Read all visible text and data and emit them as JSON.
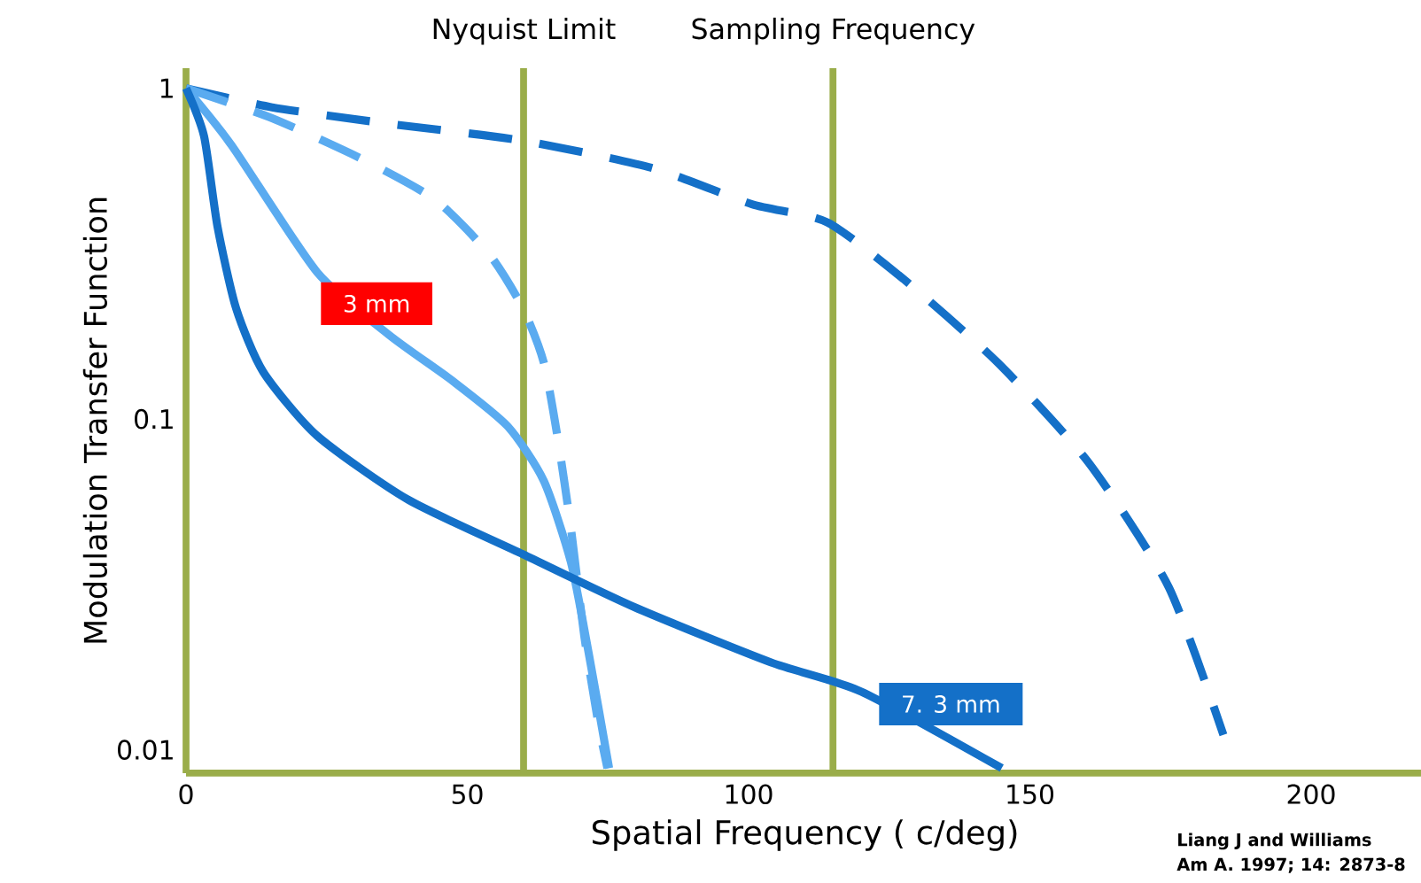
{
  "chart_data": {
    "type": "line",
    "xlabel": "Spatial Frequency ( c/deg)",
    "ylabel": "Modulation Transfer Function",
    "log": "y",
    "xlim": [
      0,
      220
    ],
    "ylim": [
      0.0085,
      1.15
    ],
    "xticks": [
      0,
      50,
      100,
      150,
      200
    ],
    "yticks": [
      0.01,
      0.1,
      1
    ],
    "series": [
      {
        "color": "#1470c8",
        "line_style": "dashed",
        "x": [
          0,
          15.3,
          34.6,
          59.9,
          82.9,
          100.6,
          114,
          128,
          144.3,
          160.4,
          174.7,
          184.4
        ],
        "values": [
          1,
          0.876,
          0.787,
          0.694,
          0.574,
          0.446,
          0.393,
          0.261,
          0.148,
          0.074,
          0.031,
          0.0111
        ]
      },
      {
        "color": "#5aabf0",
        "line_style": "dashed",
        "x": [
          0,
          15.3,
          31.3,
          44.3,
          53.9,
          59.9,
          63.6,
          66,
          68.4,
          70.8,
          73.3,
          74.9
        ],
        "values": [
          1,
          0.812,
          0.611,
          0.46,
          0.315,
          0.216,
          0.148,
          0.089,
          0.047,
          0.022,
          0.012,
          0.0088
        ]
      },
      {
        "color": "#5aabf0",
        "line_style": "solid",
        "x": [
          0,
          8.1,
          23.3,
          36.2,
          47.5,
          57.2,
          63.6,
          68.4,
          71.6,
          75.2
        ],
        "values": [
          1,
          0.672,
          0.278,
          0.179,
          0.13,
          0.095,
          0.065,
          0.037,
          0.0195,
          0.0088
        ]
      },
      {
        "color": "#1470c8",
        "line_style": "solid",
        "x": [
          0,
          3.2,
          5.6,
          8.9,
          13.7,
          23.3,
          39.5,
          59.9,
          79.7,
          103.9,
          120,
          145
        ],
        "values": [
          1,
          0.716,
          0.381,
          0.216,
          0.139,
          0.089,
          0.057,
          0.039,
          0.027,
          0.0184,
          0.015,
          0.0088
        ]
      }
    ],
    "ref_lines": [
      {
        "axis": "x",
        "value": 60,
        "label": "Nyquist Limit",
        "color": "#9aad4a"
      },
      {
        "axis": "x",
        "value": 115,
        "label": "Sampling Frequency",
        "color": "#9aad4a"
      }
    ],
    "annotations": [
      "3 mm",
      "7. 3 mm",
      "Liang J and Williams",
      "Am A. 1997; 14: 2873-8"
    ]
  }
}
